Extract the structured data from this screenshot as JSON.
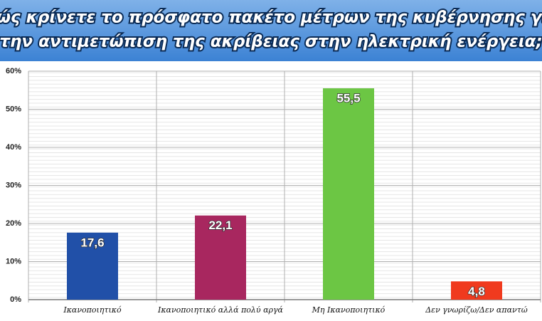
{
  "chart_data": {
    "type": "bar",
    "title": [
      "Πώς κρίνετε το πρόσφατο πακέτο μέτρων της κυβέρνησης για",
      "την αντιμετώπιση της ακρίβειας στην ηλεκτρική ενέργεια;"
    ],
    "categories": [
      "Ικανοποιητικό",
      "Ικανοποιητικό  αλλά πολύ αργά",
      "Μη Ικανοποιητικό",
      "Δεν γνωρίζω/Δεν απαντώ"
    ],
    "values": [
      17.6,
      22.1,
      55.5,
      4.8
    ],
    "value_labels": [
      "17,6",
      "22,1",
      "55,5",
      "4,8"
    ],
    "colors": [
      "#2150a8",
      "#a8275f",
      "#6cc644",
      "#f03a1e"
    ],
    "ylim": [
      0,
      60
    ],
    "yticks": [
      {
        "value": 0,
        "label": "0%"
      },
      {
        "value": 10,
        "label": "10%"
      },
      {
        "value": 20,
        "label": "20%"
      },
      {
        "value": 30,
        "label": "30%"
      },
      {
        "value": 40,
        "label": "40%"
      },
      {
        "value": 50,
        "label": "50%"
      },
      {
        "value": 60,
        "label": "60%"
      }
    ],
    "grid": true
  }
}
